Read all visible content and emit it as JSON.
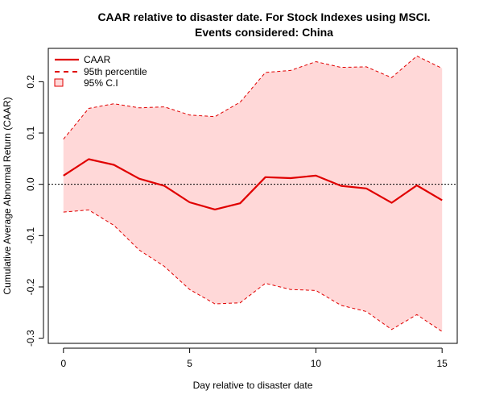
{
  "chart_data": {
    "type": "line",
    "title": "CAAR relative to disaster date. For Stock Indexes using MSCI.",
    "subtitle": "Events considered: China",
    "xlabel": "Day relative to disaster date",
    "ylabel": "Cumulative Average Abnormal Return (CAAR)",
    "xlim": [
      -0.6,
      15.6
    ],
    "ylim": [
      -0.31,
      0.265
    ],
    "x_ticks": [
      0,
      5,
      10,
      15
    ],
    "x_tick_labels": [
      "0",
      "5",
      "10",
      "15"
    ],
    "y_ticks": [
      -0.3,
      -0.2,
      -0.1,
      0.0,
      0.1,
      0.2
    ],
    "y_tick_labels": [
      "-0.3",
      "-0.2",
      "-0.1",
      "0.0",
      "0.1",
      "0.2"
    ],
    "reference_line": 0,
    "grid": false,
    "legend_position": "top-left",
    "x": [
      0,
      1,
      2,
      3,
      4,
      5,
      6,
      7,
      8,
      9,
      10,
      11,
      12,
      13,
      14,
      15
    ],
    "series": [
      {
        "name": "CAAR",
        "style": "solid",
        "color": "#e00000",
        "values": [
          0.017,
          0.049,
          0.038,
          0.011,
          -0.003,
          -0.035,
          -0.049,
          -0.037,
          0.014,
          0.012,
          0.017,
          -0.003,
          -0.008,
          -0.036,
          -0.002,
          -0.031
        ]
      },
      {
        "name": "95th percentile",
        "style": "dashed",
        "color": "#e00000",
        "upper": [
          0.088,
          0.148,
          0.157,
          0.149,
          0.151,
          0.135,
          0.132,
          0.16,
          0.218,
          0.222,
          0.239,
          0.228,
          0.229,
          0.208,
          0.25,
          0.226
        ],
        "lower": [
          -0.054,
          -0.05,
          -0.08,
          -0.128,
          -0.16,
          -0.205,
          -0.233,
          -0.231,
          -0.193,
          -0.205,
          -0.207,
          -0.236,
          -0.248,
          -0.283,
          -0.254,
          -0.287
        ]
      },
      {
        "name": "95% C.I",
        "style": "band",
        "color": "#ffd8d8"
      }
    ]
  }
}
